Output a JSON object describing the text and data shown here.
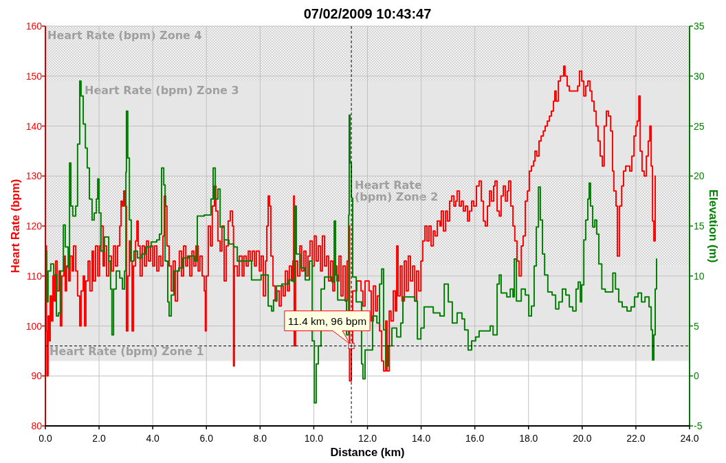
{
  "chart_data": {
    "type": "step",
    "title": "07/02/2009 10:43:47",
    "xlabel": "Distance (km)",
    "ylabel": "Heart Rate (bpm)",
    "y2label": "Elevation (m)",
    "xlim": [
      0,
      24
    ],
    "xticks": [
      {
        "value": 0,
        "label": "0.0"
      },
      {
        "value": 2,
        "label": "2.0"
      },
      {
        "value": 4,
        "label": "4.0"
      },
      {
        "value": 6,
        "label": "6.0"
      },
      {
        "value": 8,
        "label": "8.0"
      },
      {
        "value": 10,
        "label": "10.0"
      },
      {
        "value": 12,
        "label": "12.0"
      },
      {
        "value": 14,
        "label": "14.0"
      },
      {
        "value": 16,
        "label": "16.0"
      },
      {
        "value": 18,
        "label": "18.0"
      },
      {
        "value": 20,
        "label": "20.0"
      },
      {
        "value": 22,
        "label": "22.0"
      },
      {
        "value": 24,
        "label": "24.0"
      }
    ],
    "ylim": [
      80,
      160
    ],
    "yticks": [
      80,
      90,
      100,
      110,
      120,
      130,
      140,
      150,
      160
    ],
    "y2lim": [
      -5,
      35
    ],
    "y2ticks": [
      -5,
      0,
      5,
      10,
      15,
      20,
      25,
      30,
      35
    ],
    "grid": true,
    "bands": [
      {
        "axis": "y",
        "from": 149,
        "to": 160,
        "label": "Heart Rate (bpm) Zone 4",
        "color": "#f4f4f4"
      },
      {
        "axis": "y",
        "from": 130,
        "to": 149,
        "label": "Heart Rate (bpm) Zone 3",
        "color": "#e6e6e6"
      },
      {
        "axis": "y",
        "from": 112,
        "to": 130,
        "label": "Heart Rate (bpm) Zone 2",
        "color": "#f4f4f4"
      },
      {
        "axis": "y",
        "from": 93,
        "to": 112,
        "label": "Heart Rate (bpm) Zone 1",
        "color": "#e6e6e6"
      }
    ],
    "series": [
      {
        "color": "#ff0000",
        "x": [
          0.01,
          0.04,
          0.06,
          0.1,
          0.14,
          0.18,
          0.23,
          0.28,
          0.33,
          0.38,
          0.44,
          0.51,
          0.56,
          0.61,
          0.69,
          0.74,
          0.79,
          0.87,
          0.92,
          1.0,
          1.05,
          1.13,
          1.2,
          1.28,
          1.33,
          1.41,
          1.46,
          1.51,
          1.59,
          1.66,
          1.74,
          1.79,
          1.87,
          1.95,
          2.02,
          2.07,
          2.15,
          2.2,
          2.28,
          2.36,
          2.46,
          2.54,
          2.61,
          2.69,
          2.77,
          2.82,
          2.87,
          2.92,
          2.97,
          3.02,
          3.07,
          3.13,
          3.18,
          3.23,
          3.28,
          3.36,
          3.41,
          3.46,
          3.53,
          3.61,
          3.69,
          3.77,
          3.84,
          3.92,
          4.0,
          4.07,
          4.15,
          4.23,
          4.3,
          4.38,
          4.43,
          4.48,
          4.53,
          4.61,
          4.69,
          4.76,
          4.84,
          4.92,
          4.99,
          5.07,
          5.15,
          5.23,
          5.3,
          5.38,
          5.46,
          5.53,
          5.61,
          5.69,
          5.76,
          5.84,
          5.92,
          5.96,
          5.99,
          6.07,
          6.15,
          6.22,
          6.3,
          6.35,
          6.43,
          6.51,
          6.58,
          6.66,
          6.74,
          6.81,
          6.89,
          6.97,
          7.01,
          7.04,
          7.15,
          7.22,
          7.33,
          7.4,
          7.48,
          7.56,
          7.63,
          7.71,
          7.79,
          7.86,
          7.97,
          8.04,
          8.12,
          8.2,
          8.25,
          8.3,
          8.35,
          8.4,
          8.48,
          8.56,
          8.63,
          8.71,
          8.79,
          8.86,
          8.94,
          9.02,
          9.09,
          9.17,
          9.22,
          9.25,
          9.27,
          9.32,
          9.4,
          9.48,
          9.55,
          9.63,
          9.71,
          9.78,
          9.86,
          9.94,
          10.02,
          10.09,
          10.17,
          10.25,
          10.32,
          10.4,
          10.48,
          10.55,
          10.63,
          10.71,
          10.78,
          10.86,
          10.94,
          11.01,
          11.09,
          11.17,
          11.24,
          11.3,
          11.33,
          11.4,
          11.45,
          11.6,
          11.76,
          11.83,
          11.91,
          12.06,
          12.14,
          12.22,
          12.3,
          12.37,
          12.45,
          12.53,
          12.6,
          12.68,
          12.73,
          12.81,
          12.88,
          12.96,
          13.04,
          13.09,
          13.14,
          13.22,
          13.29,
          13.37,
          13.45,
          13.52,
          13.6,
          13.68,
          13.76,
          13.83,
          13.91,
          13.99,
          14.06,
          14.14,
          14.22,
          14.29,
          14.37,
          14.45,
          14.52,
          14.6,
          14.7,
          14.75,
          14.83,
          14.91,
          14.98,
          15.06,
          15.14,
          15.22,
          15.29,
          15.34,
          15.42,
          15.5,
          15.57,
          15.65,
          15.73,
          15.8,
          15.88,
          15.96,
          16.06,
          16.16,
          16.24,
          16.32,
          16.39,
          16.47,
          16.55,
          16.62,
          16.7,
          16.75,
          16.83,
          16.91,
          16.98,
          17.06,
          17.14,
          17.21,
          17.26,
          17.34,
          17.42,
          17.49,
          17.57,
          17.65,
          17.73,
          17.8,
          17.88,
          17.96,
          18.03,
          18.11,
          18.19,
          18.24,
          18.31,
          18.39,
          18.47,
          18.55,
          18.62,
          18.7,
          18.78,
          18.85,
          18.93,
          18.98,
          19.03,
          19.11,
          19.19,
          19.26,
          19.31,
          19.36,
          19.44,
          19.52,
          19.62,
          19.72,
          19.83,
          19.9,
          19.98,
          20.06,
          20.13,
          20.21,
          20.29,
          20.36,
          20.44,
          20.52,
          20.59,
          20.67,
          20.75,
          20.82,
          20.9,
          20.98,
          21.06,
          21.13,
          21.18,
          21.26,
          21.31,
          21.39,
          21.47,
          21.54,
          21.62,
          21.7,
          21.77,
          21.85,
          21.93,
          22.0,
          22.05,
          22.11,
          22.16,
          22.23,
          22.31,
          22.39,
          22.46,
          22.52,
          22.57,
          22.62,
          22.67,
          22.72
        ],
        "values": [
          116,
          99,
          90,
          102,
          97,
          106,
          101,
          110,
          105,
          113,
          107,
          111,
          100,
          110,
          114,
          107,
          112,
          109,
          114,
          111,
          116,
          111,
          106,
          100,
          107,
          110,
          100,
          109,
          113,
          107,
          115,
          109,
          116,
          110,
          116,
          120,
          112,
          116,
          110,
          114,
          111,
          116,
          112,
          116,
          120,
          125,
          124,
          127,
          124,
          99,
          110,
          117,
          113,
          99,
          112,
          117,
          121,
          116,
          110,
          116,
          112,
          117,
          113,
          116,
          112,
          116,
          111,
          114,
          112,
          118,
          126,
          124,
          116,
          112,
          107,
          113,
          105,
          111,
          115,
          110,
          116,
          112,
          114,
          110,
          115,
          112,
          116,
          111,
          114,
          110,
          107,
          99,
          110,
          120,
          116,
          124,
          128,
          123,
          117,
          115,
          120,
          109,
          116,
          121,
          123,
          120,
          92,
          112,
          110,
          114,
          110,
          114,
          112,
          115,
          113,
          115,
          112,
          115,
          111,
          114,
          106,
          113,
          120,
          126,
          124,
          114,
          108,
          105,
          107,
          104,
          108,
          106,
          111,
          107,
          112,
          109,
          113,
          126,
          96,
          113,
          110,
          116,
          111,
          115,
          110,
          114,
          117,
          112,
          118,
          113,
          116,
          111,
          118,
          112,
          114,
          109,
          113,
          107,
          112,
          109,
          114,
          106,
          112,
          105,
          113,
          120,
          89,
          96,
          107,
          109,
          107,
          104,
          109,
          107,
          101,
          108,
          103,
          106,
          99,
          93,
          91,
          101,
          91,
          103,
          101,
          107,
          103,
          116,
          106,
          112,
          105,
          113,
          107,
          114,
          109,
          112,
          105,
          111,
          107,
          113,
          117,
          120,
          117,
          120,
          116,
          119,
          118,
          121,
          120,
          123,
          119,
          123,
          121,
          125,
          126,
          124,
          125,
          127,
          124,
          125,
          123,
          124,
          121,
          123,
          125,
          124,
          128,
          129,
          125,
          121,
          120,
          124,
          127,
          125,
          128,
          129,
          123,
          122,
          126,
          128,
          125,
          127,
          129,
          124,
          120,
          117,
          113,
          110,
          116,
          118,
          125,
          127,
          131,
          132,
          133,
          135,
          134,
          137,
          138,
          139,
          140,
          141,
          142,
          143,
          145,
          147,
          145,
          149,
          150,
          150,
          152,
          150,
          148,
          147,
          147,
          147,
          148,
          151,
          149,
          146,
          148,
          149,
          147,
          145,
          143,
          140,
          137,
          134,
          132,
          140,
          143,
          142,
          139,
          131,
          127,
          124,
          114,
          124,
          128,
          131,
          132,
          132,
          131,
          134,
          138,
          140,
          141,
          146,
          135,
          131,
          130,
          134,
          137,
          140,
          132,
          121,
          117,
          130
        ]
      },
      {
        "color": "#008000",
        "axis": "y2",
        "x": [
          0.01,
          0.05,
          0.1,
          0.2,
          0.31,
          0.41,
          0.49,
          0.56,
          0.67,
          0.74,
          0.85,
          0.9,
          0.95,
          1.02,
          1.13,
          1.2,
          1.28,
          1.33,
          1.41,
          1.49,
          1.56,
          1.64,
          1.74,
          1.82,
          1.9,
          1.95,
          2.0,
          2.07,
          2.2,
          2.36,
          2.43,
          2.48,
          2.54,
          2.64,
          2.77,
          2.87,
          2.95,
          3.0,
          3.02,
          3.07,
          3.13,
          3.2,
          3.3,
          3.43,
          3.59,
          3.74,
          3.94,
          4.15,
          4.25,
          4.33,
          4.41,
          4.46,
          4.56,
          4.61,
          4.69,
          4.79,
          4.97,
          5.12,
          5.35,
          5.56,
          5.66,
          5.92,
          6.07,
          6.17,
          6.25,
          6.33,
          6.43,
          6.51,
          6.66,
          6.84,
          7.02,
          7.15,
          7.53,
          7.68,
          7.86,
          8.04,
          8.2,
          8.3,
          8.43,
          8.5,
          8.61,
          8.81,
          9.07,
          9.25,
          9.3,
          9.35,
          9.5,
          9.68,
          9.84,
          9.94,
          10.02,
          10.09,
          10.17,
          10.27,
          10.4,
          10.55,
          10.68,
          10.76,
          10.81,
          10.89,
          11.22,
          11.3,
          11.32,
          11.35,
          11.4,
          11.45,
          11.58,
          11.78,
          11.83,
          11.91,
          12.19,
          12.35,
          12.45,
          12.53,
          12.6,
          12.68,
          12.78,
          12.91,
          13.09,
          13.24,
          13.32,
          13.55,
          13.76,
          13.86,
          13.99,
          14.11,
          14.45,
          14.7,
          14.86,
          15.01,
          15.16,
          15.34,
          15.52,
          15.62,
          15.75,
          15.88,
          16.03,
          16.16,
          16.5,
          16.57,
          16.68,
          16.78,
          16.83,
          16.91,
          16.98,
          17.19,
          17.32,
          17.42,
          17.47,
          17.55,
          17.73,
          17.88,
          18.01,
          18.11,
          18.21,
          18.29,
          18.37,
          18.44,
          18.52,
          18.6,
          18.72,
          18.88,
          19.01,
          19.13,
          19.26,
          19.39,
          19.52,
          19.65,
          19.77,
          19.85,
          19.93,
          19.98,
          20.06,
          20.13,
          20.21,
          20.26,
          20.31,
          20.39,
          20.47,
          20.54,
          20.62,
          20.73,
          20.86,
          21.03,
          21.14,
          21.24,
          21.36,
          21.49,
          21.67,
          21.82,
          21.95,
          22.08,
          22.21,
          22.34,
          22.49,
          22.57,
          22.62,
          22.67,
          22.72,
          22.77
        ],
        "values": [
          12.5,
          7.4,
          10.5,
          11.2,
          10.1,
          6.0,
          6.3,
          10.5,
          15.1,
          12.9,
          10.8,
          21.3,
          17.0,
          16.0,
          17.0,
          23.2,
          29.5,
          28.0,
          25.2,
          22.8,
          20.8,
          17.7,
          15.6,
          16.3,
          17.7,
          19.7,
          16.3,
          12.5,
          13.9,
          11.5,
          8.7,
          4.1,
          8.7,
          10.5,
          9.8,
          8.7,
          10.5,
          20.4,
          26.5,
          21.8,
          15.6,
          11.5,
          12.5,
          11.8,
          12.2,
          12.9,
          13.4,
          13.6,
          14.2,
          20.8,
          19.1,
          11.5,
          7.4,
          6.0,
          8.1,
          10.5,
          10.8,
          11.8,
          12.0,
          11.5,
          16.0,
          16.1,
          16.1,
          17.7,
          20.8,
          17.7,
          18.7,
          14.9,
          13.6,
          13.2,
          12.9,
          11.5,
          11.5,
          9.6,
          9.6,
          10.1,
          10.1,
          7.0,
          6.5,
          7.6,
          9.0,
          9.2,
          9.6,
          9.4,
          17.0,
          12.2,
          10.8,
          9.6,
          11.5,
          3.5,
          -2.7,
          1.2,
          3.0,
          8.7,
          9.9,
          9.9,
          9.4,
          15.5,
          10.1,
          7.6,
          4.1,
          16.1,
          26.1,
          21.3,
          17.8,
          9.9,
          7.4,
          1.2,
          -0.3,
          2.6,
          6.0,
          5.3,
          9.2,
          10.7,
          4.6,
          1.0,
          3.0,
          4.8,
          3.9,
          5.3,
          7.9,
          7.9,
          7.5,
          3.7,
          4.8,
          6.9,
          6.3,
          6.0,
          9.2,
          7.4,
          5.3,
          6.3,
          5.7,
          4.6,
          2.6,
          3.5,
          3.9,
          4.5,
          4.5,
          5.0,
          4.1,
          4.1,
          9.2,
          10.1,
          8.3,
          7.9,
          8.7,
          7.9,
          11.7,
          7.5,
          8.7,
          8.1,
          6.0,
          7.0,
          11.0,
          14.9,
          18.9,
          15.6,
          12.2,
          10.1,
          8.4,
          8.1,
          6.7,
          7.4,
          8.7,
          8.1,
          6.9,
          6.5,
          8.7,
          9.4,
          7.4,
          9.1,
          13.6,
          15.6,
          17.7,
          19.3,
          17.0,
          14.9,
          15.6,
          14.2,
          11.2,
          8.7,
          8.4,
          8.4,
          10.3,
          8.7,
          7.4,
          6.9,
          6.5,
          6.9,
          7.9,
          8.3,
          7.4,
          7.9,
          6.9,
          4.6,
          1.6,
          4.1,
          8.7,
          11.7
        ]
      }
    ],
    "ref_lines": [
      {
        "axis": "x",
        "value": 11.4,
        "color": "#000000",
        "line_style": "dashed"
      },
      {
        "axis": "y",
        "value": 96,
        "color": "#000000",
        "line_style": "dashed"
      }
    ],
    "annotations": [
      {
        "text": "11.4 km, 96 bpm",
        "x": 11.4,
        "y": 96
      }
    ]
  }
}
